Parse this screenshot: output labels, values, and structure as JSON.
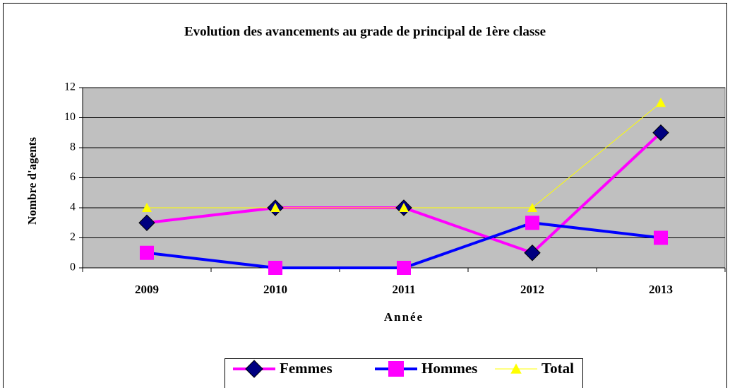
{
  "chart_data": {
    "type": "line",
    "title": "Evolution des avancements au grade de principal de 1ère classe",
    "x_label": "Année",
    "y_label": "Nombre d'agents",
    "categories": [
      "2009",
      "2010",
      "2011",
      "2012",
      "2013"
    ],
    "series": [
      {
        "name": "Femmes",
        "color": "#ff00ff",
        "marker": "diamond",
        "marker_color": "#000080",
        "width": 4,
        "values": [
          3,
          4,
          4,
          1,
          9
        ]
      },
      {
        "name": "Hommes",
        "color": "#0000ff",
        "marker": "square",
        "marker_color": "#ff00ff",
        "width": 4,
        "values": [
          1,
          0,
          0,
          3,
          2
        ]
      },
      {
        "name": "Total",
        "color": "#ffff00",
        "marker": "triangle",
        "marker_color": "#ffff00",
        "width": 1,
        "values": [
          4,
          4,
          4,
          4,
          11
        ]
      }
    ],
    "ylim": [
      0,
      12
    ],
    "yticks": [
      0,
      2,
      4,
      6,
      8,
      10,
      12
    ],
    "grid": true,
    "legend": "bottom"
  }
}
